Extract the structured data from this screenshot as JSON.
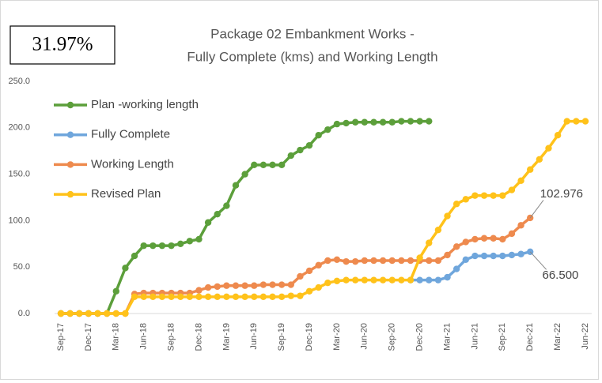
{
  "chart_data": {
    "type": "line",
    "title": "Package 02 Embankment Works -",
    "subtitle": "Fully Complete (kms) and Working Length",
    "annotation": "31.97%",
    "categories": [
      "Sep-17",
      null,
      null,
      "Dec-17",
      null,
      null,
      "Mar-18",
      null,
      null,
      "Jun-18",
      null,
      null,
      "Sep-18",
      null,
      null,
      "Dec-18",
      null,
      null,
      "Mar-19",
      null,
      null,
      "Jun-19",
      null,
      null,
      "Sep-19",
      null,
      null,
      "Dec-19",
      null,
      null,
      "Mar-20",
      null,
      null,
      "Jun-20",
      null,
      null,
      "Sep-20",
      null,
      null,
      "Dec-20",
      null,
      null,
      "Mar-21",
      null,
      null,
      "Jun-21",
      null,
      null,
      "Sep-21",
      null,
      null,
      "Dec-21",
      null,
      null,
      "Mar-22",
      null,
      null,
      "Jun-22"
    ],
    "series": [
      {
        "name": "Plan -working length",
        "color": "#5c9f3b",
        "values": [
          0,
          0,
          0,
          0,
          0,
          0,
          24,
          49,
          62,
          73,
          73,
          73,
          73,
          75,
          78,
          80,
          98,
          107,
          116,
          138,
          150,
          160,
          160,
          160,
          160,
          170,
          176,
          181,
          192,
          198,
          204,
          205,
          206,
          206,
          206,
          206,
          206,
          207,
          207,
          207,
          207,
          null,
          null,
          null,
          null,
          null,
          null,
          null,
          null,
          null,
          null,
          null,
          null,
          null,
          null,
          null,
          null,
          null
        ]
      },
      {
        "name": "Fully Complete",
        "color": "#6fa6dc",
        "values": [
          null,
          null,
          null,
          null,
          null,
          null,
          null,
          null,
          null,
          null,
          null,
          null,
          null,
          null,
          null,
          null,
          null,
          null,
          null,
          null,
          null,
          null,
          null,
          null,
          null,
          null,
          null,
          null,
          null,
          null,
          null,
          null,
          null,
          null,
          null,
          null,
          null,
          null,
          36,
          36,
          36,
          36,
          39,
          48,
          58,
          62,
          62,
          62,
          62,
          63,
          64,
          66.5,
          null,
          null,
          null,
          null,
          null,
          null
        ],
        "value_labels": [
          null,
          null,
          null,
          null,
          null,
          null,
          null,
          null,
          null,
          null,
          null,
          null,
          null,
          null,
          null,
          null,
          null,
          null,
          null,
          null,
          null,
          null,
          null,
          null,
          null,
          null,
          null,
          null,
          null,
          null,
          null,
          null,
          null,
          null,
          null,
          null,
          null,
          null,
          null,
          null,
          null,
          null,
          null,
          null,
          null,
          null,
          null,
          null,
          null,
          null,
          null,
          "66.500",
          null,
          null,
          null,
          null,
          null,
          null
        ]
      },
      {
        "name": "Working Length",
        "color": "#ee8a4e",
        "values": [
          0,
          0,
          0,
          0,
          0,
          0,
          0,
          0,
          21,
          22,
          22,
          22,
          22,
          22,
          22,
          25,
          28,
          29,
          30,
          30,
          30,
          30,
          31,
          31,
          31,
          31,
          40,
          46,
          52,
          57,
          58,
          56,
          56,
          57,
          57,
          57,
          57,
          57,
          57,
          57,
          57,
          57,
          63,
          72,
          77,
          80,
          81,
          81,
          80,
          86,
          95,
          102.976,
          null,
          null,
          null,
          null,
          null,
          null
        ],
        "value_labels": [
          null,
          null,
          null,
          null,
          null,
          null,
          null,
          null,
          null,
          null,
          null,
          null,
          null,
          null,
          null,
          null,
          null,
          null,
          null,
          null,
          null,
          null,
          null,
          null,
          null,
          null,
          null,
          null,
          null,
          null,
          null,
          null,
          null,
          null,
          null,
          null,
          null,
          null,
          null,
          null,
          null,
          null,
          null,
          null,
          null,
          null,
          null,
          null,
          null,
          null,
          null,
          "102.976",
          null,
          null,
          null,
          null,
          null,
          null
        ]
      },
      {
        "name": "Revised Plan",
        "color": "#ffc21a",
        "values": [
          0,
          0,
          0,
          0,
          0,
          0,
          0,
          0,
          18,
          18,
          18,
          18,
          18,
          18,
          18,
          18,
          18,
          18,
          18,
          18,
          18,
          18,
          18,
          18,
          18,
          19,
          19,
          24,
          28,
          33,
          35,
          36,
          36,
          36,
          36,
          36,
          36,
          36,
          36,
          60,
          76,
          90,
          105,
          118,
          123,
          127,
          127,
          127,
          127,
          133,
          143,
          155,
          166,
          178,
          192,
          207,
          207,
          207
        ]
      }
    ],
    "ylim": [
      0,
      250
    ],
    "yticks": [
      {
        "value": 0,
        "label": "0.0"
      },
      {
        "value": 50,
        "label": "50.0"
      },
      {
        "value": 100,
        "label": "100.0"
      },
      {
        "value": 150,
        "label": "150.0"
      },
      {
        "value": 200,
        "label": "200.0"
      },
      {
        "value": 250,
        "label": "250.0"
      }
    ],
    "grid": false,
    "legend": "upper left"
  }
}
